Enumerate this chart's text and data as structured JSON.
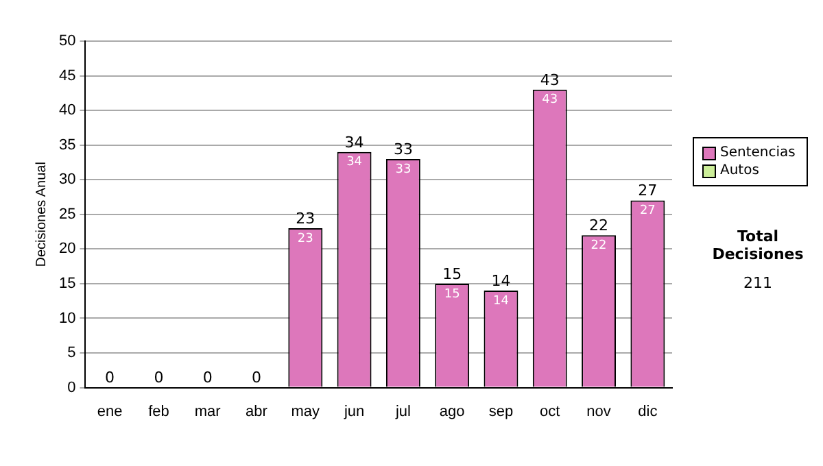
{
  "chart_data": {
    "type": "bar",
    "ylabel": "Decisiones Anual",
    "categories": [
      "ene",
      "feb",
      "mar",
      "abr",
      "may",
      "jun",
      "jul",
      "ago",
      "sep",
      "oct",
      "nov",
      "dic"
    ],
    "series": [
      {
        "name": "Sentencias",
        "color": "#dd77bb",
        "values": [
          0,
          0,
          0,
          0,
          23,
          34,
          33,
          15,
          14,
          43,
          22,
          27
        ],
        "value_labels": [
          null,
          null,
          null,
          null,
          "23",
          "34",
          "33",
          "15",
          "14",
          "43",
          "22",
          "27"
        ]
      },
      {
        "name": "Autos",
        "color": "#ccee99",
        "values": [
          0,
          0,
          0,
          0,
          0,
          0,
          0,
          0,
          0,
          0,
          0,
          0
        ]
      }
    ],
    "stacked": true,
    "totals": [
      "0",
      "0",
      "0",
      "0",
      "23",
      "34",
      "33",
      "15",
      "14",
      "43",
      "22",
      "27"
    ],
    "ylim": [
      0,
      50
    ],
    "yticks": [
      0,
      5,
      10,
      15,
      20,
      25,
      30,
      35,
      40,
      45,
      50
    ],
    "grid": "y",
    "legend": "right",
    "annotations": [
      "Total Decisiones",
      "211"
    ]
  }
}
